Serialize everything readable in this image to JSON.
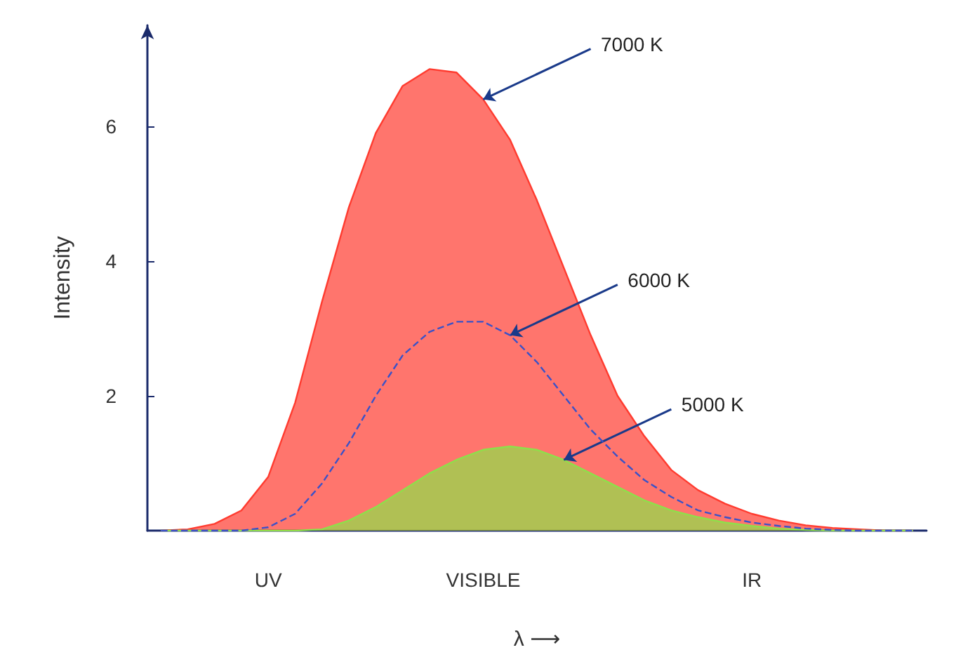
{
  "chart_data": {
    "type": "area",
    "xlabel": "λ ⟶",
    "ylabel": "Intensity",
    "categories": [
      null,
      null,
      null,
      null,
      "UV",
      null,
      null,
      null,
      null,
      null,
      null,
      null,
      "VISIBLE",
      null,
      null,
      null,
      null,
      null,
      null,
      null,
      null,
      null,
      "IR",
      null,
      null,
      null,
      null,
      null,
      null
    ],
    "ylim": [
      0,
      7.5
    ],
    "yticks": [
      2,
      4,
      6
    ],
    "grid": false,
    "legend": false,
    "series": [
      {
        "name": "7000 K",
        "color": "#ff3b2f",
        "values": [
          0,
          0.02,
          0.1,
          0.3,
          0.8,
          1.9,
          3.4,
          4.8,
          5.9,
          6.6,
          6.85,
          6.8,
          6.4,
          5.8,
          4.9,
          3.9,
          2.9,
          2.0,
          1.4,
          0.9,
          0.6,
          0.4,
          0.25,
          0.15,
          0.08,
          0.04,
          0.02,
          0,
          0
        ]
      },
      {
        "name": "5000 K",
        "color": "#8ee04a",
        "values": [
          0,
          0,
          0,
          0,
          0,
          0,
          0.02,
          0.15,
          0.35,
          0.6,
          0.85,
          1.05,
          1.2,
          1.25,
          1.2,
          1.05,
          0.85,
          0.65,
          0.45,
          0.3,
          0.2,
          0.12,
          0.07,
          0.03,
          0.01,
          0,
          0,
          0,
          0
        ]
      },
      {
        "name": "6000 K",
        "type": "line",
        "line_style": "dashed",
        "color": "#3a52c8",
        "values": [
          0,
          0,
          0,
          0,
          0.05,
          0.25,
          0.7,
          1.3,
          2.0,
          2.6,
          2.95,
          3.1,
          3.1,
          2.9,
          2.5,
          2.0,
          1.5,
          1.1,
          0.75,
          0.5,
          0.3,
          0.2,
          0.12,
          0.07,
          0.03,
          0.01,
          0,
          0,
          0
        ]
      }
    ]
  }
}
